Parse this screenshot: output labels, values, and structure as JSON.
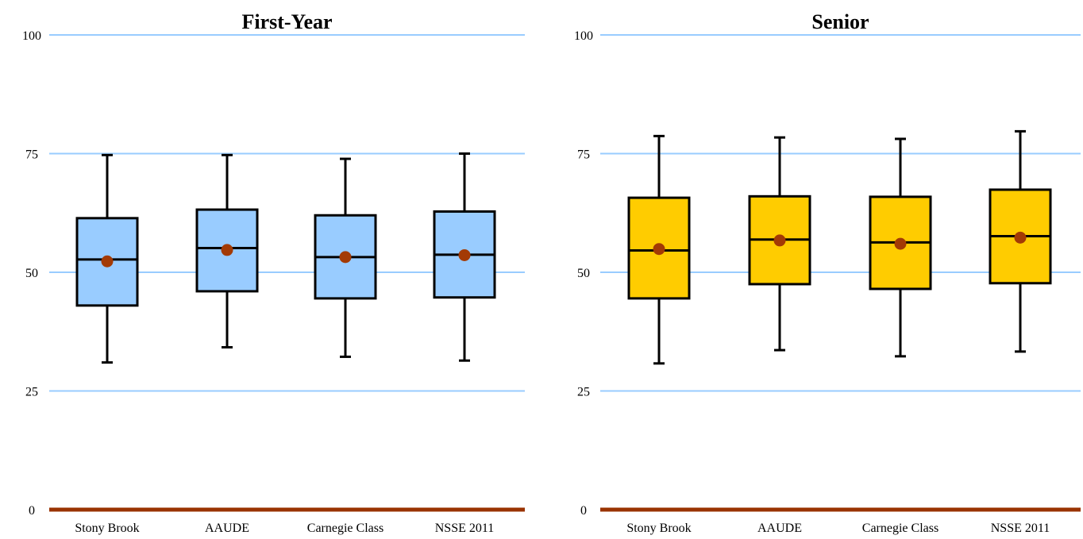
{
  "chart_data": [
    {
      "type": "box",
      "title": "First-Year",
      "ylim": [
        0,
        100
      ],
      "yticks": [
        "0",
        "25",
        "50",
        "75",
        "100"
      ],
      "grid": true,
      "box_color": "#99ccff",
      "mean_color": "#a33a05",
      "grid_color": "#99ccff",
      "axis_color": "#993300",
      "categories": [
        "Stony Brook",
        "AAUDE",
        "Carnegie Class",
        "NSSE 2011"
      ],
      "boxes": [
        {
          "min": 31.0,
          "q1": 43.0,
          "median": 52.7,
          "q3": 61.4,
          "max": 74.7,
          "mean": 52.3
        },
        {
          "min": 34.2,
          "q1": 46.0,
          "median": 55.1,
          "q3": 63.2,
          "max": 74.7,
          "mean": 54.7
        },
        {
          "min": 32.2,
          "q1": 44.5,
          "median": 53.2,
          "q3": 62.0,
          "max": 73.9,
          "mean": 53.2
        },
        {
          "min": 31.4,
          "q1": 44.7,
          "median": 53.7,
          "q3": 62.8,
          "max": 75.0,
          "mean": 53.6
        }
      ]
    },
    {
      "type": "box",
      "title": "Senior",
      "ylim": [
        0,
        100
      ],
      "yticks": [
        "0",
        "25",
        "50",
        "75",
        "100"
      ],
      "grid": true,
      "box_color": "#ffcc00",
      "mean_color": "#a33a05",
      "grid_color": "#99ccff",
      "axis_color": "#993300",
      "categories": [
        "Stony Brook",
        "AAUDE",
        "Carnegie Class",
        "NSSE 2011"
      ],
      "boxes": [
        {
          "min": 30.8,
          "q1": 44.5,
          "median": 54.6,
          "q3": 65.7,
          "max": 78.7,
          "mean": 54.9
        },
        {
          "min": 33.6,
          "q1": 47.5,
          "median": 56.9,
          "q3": 66.0,
          "max": 78.4,
          "mean": 56.7
        },
        {
          "min": 32.3,
          "q1": 46.5,
          "median": 56.3,
          "q3": 65.9,
          "max": 78.1,
          "mean": 56.0
        },
        {
          "min": 33.3,
          "q1": 47.7,
          "median": 57.6,
          "q3": 67.4,
          "max": 79.7,
          "mean": 57.3
        }
      ]
    }
  ]
}
